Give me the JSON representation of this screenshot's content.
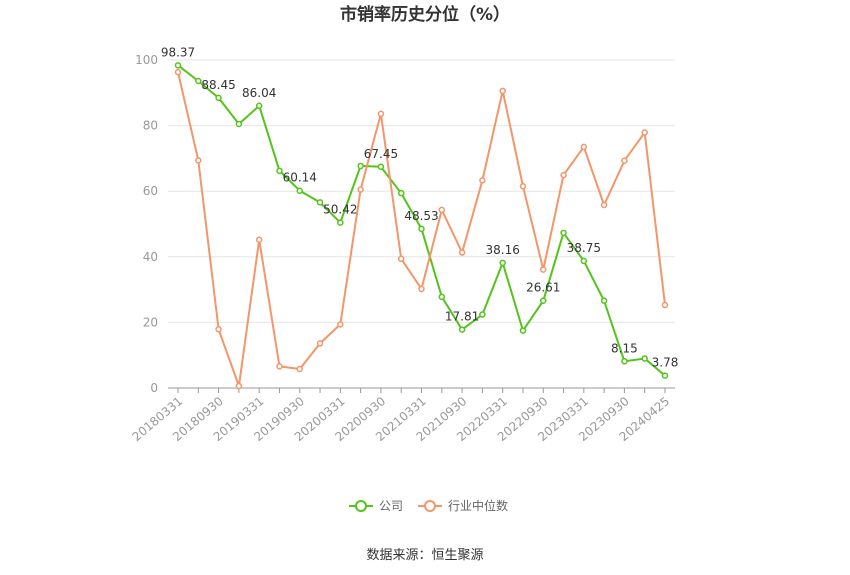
{
  "chart_data": {
    "type": "line",
    "title": "市销率历史分位（%）",
    "ylim": [
      0,
      100
    ],
    "yticks": [
      0,
      20,
      40,
      60,
      80,
      100
    ],
    "x": [
      "20180331",
      "20180630",
      "20180930",
      "20181231",
      "20190331",
      "20190630",
      "20190930",
      "20191231",
      "20200331",
      "20200630",
      "20200930",
      "20201231",
      "20210331",
      "20210630",
      "20210930",
      "20211231",
      "20220331",
      "20220630",
      "20220930",
      "20221231",
      "20230331",
      "20230630",
      "20230930",
      "20231231",
      "20240425"
    ],
    "x_tick_labels": [
      "20180331",
      "",
      "20180930",
      "",
      "20190331",
      "",
      "20190930",
      "",
      "20200331",
      "",
      "20200930",
      "",
      "20210331",
      "",
      "20210930",
      "",
      "20220331",
      "",
      "20220930",
      "",
      "20230331",
      "",
      "20230930",
      "",
      "20240425"
    ],
    "series": [
      {
        "name": "公司",
        "color": "#52c41a",
        "values": [
          98.37,
          93.6,
          88.45,
          80.5,
          86.04,
          66.2,
          60.14,
          56.6,
          50.42,
          67.7,
          67.45,
          59.4,
          48.53,
          27.8,
          17.81,
          22.4,
          38.16,
          17.5,
          26.61,
          47.3,
          38.75,
          26.6,
          8.15,
          9.0,
          3.78
        ],
        "labels": [
          "98.37",
          "",
          "88.45",
          "",
          "86.04",
          "",
          "60.14",
          "",
          "50.42",
          "",
          "67.45",
          "",
          "48.53",
          "",
          "17.81",
          "",
          "38.16",
          "",
          "26.61",
          "",
          "38.75",
          "",
          "8.15",
          "",
          "3.78"
        ]
      },
      {
        "name": "行业中位数",
        "color": "#f4956a",
        "values": [
          96.3,
          69.4,
          17.9,
          0.6,
          45.2,
          6.6,
          5.8,
          13.6,
          19.4,
          60.5,
          83.6,
          39.4,
          30.2,
          54.3,
          41.3,
          63.3,
          90.6,
          61.5,
          36.1,
          64.9,
          73.5,
          55.8,
          69.3,
          77.9,
          25.3
        ]
      }
    ],
    "grid": true,
    "legend_position": "bottom-center"
  },
  "source": "数据来源：恒生聚源"
}
